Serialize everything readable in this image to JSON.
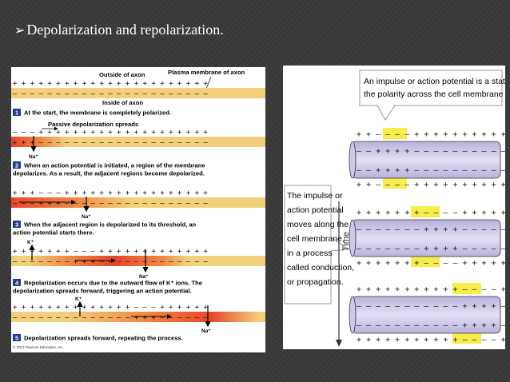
{
  "slide": {
    "bullet": "➢",
    "title": "Depolarization and repolarization."
  },
  "left_figure": {
    "outside_label": "Outside of axon",
    "membrane_label": "Plasma membrane of axon",
    "inside_label": "Inside of axon",
    "passive_label": "Passive depolarization spreads",
    "na_label": "Na⁺",
    "k_label": "K⁺",
    "steps": [
      {
        "number": "1",
        "lines": [
          "At the start, the membrane is completely polarized."
        ]
      },
      {
        "number": "2",
        "lines": [
          "When an action potential is initiated, a region of the membrane",
          "depolarizes. As a result, the adjacent regions become depolarized."
        ]
      },
      {
        "number": "3",
        "lines": [
          "When the adjacent region is depolarized to its threshold, an",
          "action potential starts there."
        ]
      },
      {
        "number": "4",
        "lines": [
          "Repolarization occurs due to the outward flow of K⁺ ions. The",
          "depolarization spreads forward, triggering an action potential."
        ]
      },
      {
        "number": "5",
        "lines": [
          "Depolarization spreads forward, repeating the process."
        ]
      }
    ],
    "copyright": "© 2012 Pearson Education, Inc."
  },
  "right_figure": {
    "top_callout": [
      "An impulse or action potential is a state in which",
      "the polarity across the cell membrane is reversed."
    ],
    "side_callout": [
      "The impulse or",
      "action potential",
      "moves along the",
      "cell membrane,",
      "in a process",
      "called conduction,",
      "or propagation."
    ],
    "time_label": "Time"
  },
  "colors": {
    "membrane_fill": "#f2cf7a",
    "depolarized_fill": "#e8452a",
    "axon_fill": "#d9d3ef",
    "reversed_highlight": "#f7ec4a",
    "slide_background": "#3b3b3b"
  }
}
